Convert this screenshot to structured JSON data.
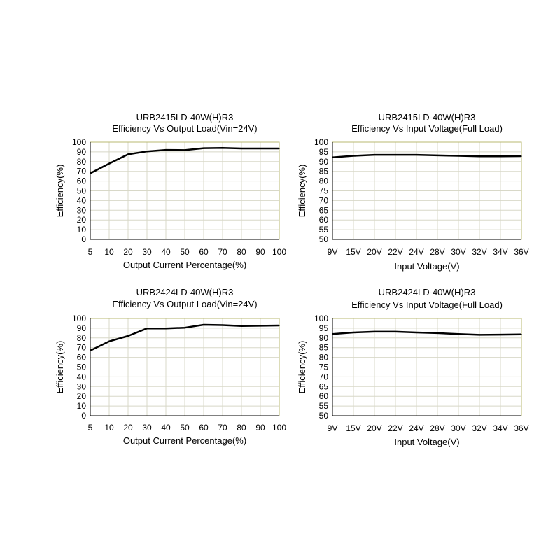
{
  "chart_data": [
    {
      "type": "line",
      "title": "URB2415LD-40W(H)R3",
      "subtitle": "Efficiency Vs Output Load(Vin=24V)",
      "xlabel": "Output Current Percentage(%)",
      "ylabel": "Efficiency(%)",
      "categories": [
        "5",
        "10",
        "20",
        "30",
        "40",
        "50",
        "60",
        "70",
        "80",
        "90",
        "100"
      ],
      "yticks": [
        "0",
        "10",
        "20",
        "30",
        "40",
        "50",
        "60",
        "70",
        "80",
        "90",
        "100"
      ],
      "ylim": [
        0,
        100
      ],
      "grid": true,
      "series": [
        {
          "values": [
            68,
            78,
            87.5,
            90.5,
            92,
            91.8,
            93.8,
            94,
            93.5,
            93.5,
            93.5
          ]
        }
      ],
      "colors": {
        "line": "#000000",
        "grid": "#d8d8c8",
        "border": "#b8b870"
      }
    },
    {
      "type": "line",
      "title": "URB2415LD-40W(H)R3",
      "subtitle": "Efficiency Vs Input Voltage(Full Load)",
      "xlabel": "Input Voltage(V)",
      "ylabel": "Efficiency(%)",
      "categories": [
        "9V",
        "15V",
        "20V",
        "22V",
        "24V",
        "28V",
        "30V",
        "32V",
        "34V",
        "36V"
      ],
      "yticks": [
        "50",
        "55",
        "60",
        "65",
        "70",
        "75",
        "80",
        "85",
        "90",
        "95",
        "100"
      ],
      "ylim": [
        50,
        100
      ],
      "grid": true,
      "series": [
        {
          "values": [
            92.2,
            93,
            93.5,
            93.5,
            93.5,
            93.2,
            93,
            92.7,
            92.7,
            92.8
          ]
        }
      ],
      "colors": {
        "line": "#000000",
        "grid": "#d8d8c8",
        "border": "#b8b870"
      }
    },
    {
      "type": "line",
      "title": "URB2424LD-40W(H)R3",
      "subtitle": "Efficiency Vs Output Load(Vin=24V)",
      "xlabel": "Output Current Percentage(%)",
      "ylabel": "Efficiency(%)",
      "categories": [
        "5",
        "10",
        "20",
        "30",
        "40",
        "50",
        "60",
        "70",
        "80",
        "90",
        "100"
      ],
      "yticks": [
        "0",
        "10",
        "20",
        "30",
        "40",
        "50",
        "60",
        "70",
        "80",
        "90",
        "100"
      ],
      "ylim": [
        0,
        100
      ],
      "grid": true,
      "series": [
        {
          "values": [
            67,
            76.5,
            82,
            89.8,
            89.8,
            90.5,
            93.5,
            93.2,
            92.2,
            92.5,
            92.8
          ]
        }
      ],
      "colors": {
        "line": "#000000",
        "grid": "#d8d8c8",
        "border": "#b8b870"
      }
    },
    {
      "type": "line",
      "title": "URB2424LD-40W(H)R3",
      "subtitle": "Efficiency Vs Input Voltage(Full Load)",
      "xlabel": "Input Voltage(V)",
      "ylabel": "Efficiency(%)",
      "categories": [
        "9V",
        "15V",
        "20V",
        "22V",
        "24V",
        "28V",
        "30V",
        "32V",
        "34V",
        "36V"
      ],
      "yticks": [
        "50",
        "55",
        "60",
        "65",
        "70",
        "75",
        "80",
        "85",
        "90",
        "95",
        "100"
      ],
      "ylim": [
        50,
        100
      ],
      "grid": true,
      "series": [
        {
          "values": [
            92,
            92.8,
            93.2,
            93.2,
            92.8,
            92.5,
            92,
            91.6,
            91.7,
            91.8
          ]
        }
      ],
      "colors": {
        "line": "#000000",
        "grid": "#d8d8c8",
        "border": "#b8b870"
      }
    }
  ]
}
